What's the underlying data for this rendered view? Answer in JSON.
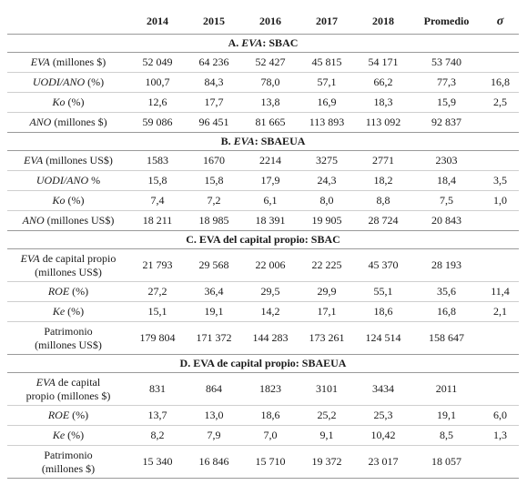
{
  "header": {
    "blank": "",
    "years": [
      "2014",
      "2015",
      "2016",
      "2017",
      "2018"
    ],
    "promedio": "Promedio",
    "sigma": "σ"
  },
  "sections": [
    {
      "title_prefix": "A. ",
      "title_italic": "EVA",
      "title_suffix": ": SBAC",
      "rows": [
        {
          "label_italic": "EVA",
          "label_rest": " (millones $)",
          "values": [
            "52 049",
            "64 236",
            "52 427",
            "45 815",
            "54 171"
          ],
          "promedio": "53 740",
          "sigma": ""
        },
        {
          "label_italic": "UODI/ANO",
          "label_rest": " (%)",
          "values": [
            "100,7",
            "84,3",
            "78,0",
            "57,1",
            "66,2"
          ],
          "promedio": "77,3",
          "sigma": "16,8"
        },
        {
          "label_italic": "Ko",
          "label_rest": " (%)",
          "values": [
            "12,6",
            "17,7",
            "13,8",
            "16,9",
            "18,3"
          ],
          "promedio": "15,9",
          "sigma": "2,5"
        },
        {
          "label_italic": "ANO",
          "label_rest": " (millones $)",
          "values": [
            "59 086",
            "96 451",
            "81 665",
            "113 893",
            "113 092"
          ],
          "promedio": "92 837",
          "sigma": ""
        }
      ]
    },
    {
      "title_prefix": "B. ",
      "title_italic": "EVA",
      "title_suffix": ": SBAEUA",
      "rows": [
        {
          "label_italic": "EVA",
          "label_rest": " (millones US$)",
          "values": [
            "1583",
            "1670",
            "2214",
            "3275",
            "2771"
          ],
          "promedio": "2303",
          "sigma": ""
        },
        {
          "label_italic": "UODI/ANO",
          "label_rest": " %",
          "values": [
            "15,8",
            "15,8",
            "17,9",
            "24,3",
            "18,2"
          ],
          "promedio": "18,4",
          "sigma": "3,5"
        },
        {
          "label_italic": "Ko",
          "label_rest": " (%)",
          "values": [
            "7,4",
            "7,2",
            "6,1",
            "8,0",
            "8,8"
          ],
          "promedio": "7,5",
          "sigma": "1,0"
        },
        {
          "label_italic": "ANO",
          "label_rest": " (millones US$)",
          "values": [
            "18 211",
            "18 985",
            "18 391",
            "19 905",
            "28 724"
          ],
          "promedio": "20 843",
          "sigma": ""
        }
      ]
    },
    {
      "title_prefix": "C. EVA del capital propio: SBAC",
      "title_italic": "",
      "title_suffix": "",
      "rows": [
        {
          "label_italic": "EVA",
          "label_rest": " de capital propio",
          "label_line2": "(millones US$)",
          "tall": true,
          "values": [
            "21 793",
            "29 568",
            "22 006",
            "22 225",
            "45 370"
          ],
          "promedio": "28 193",
          "sigma": ""
        },
        {
          "label_italic": "ROE",
          "label_rest": " (%)",
          "values": [
            "27,2",
            "36,4",
            "29,5",
            "29,9",
            "55,1"
          ],
          "promedio": "35,6",
          "sigma": "11,4"
        },
        {
          "label_italic": "Ke",
          "label_rest": " (%)",
          "values": [
            "15,1",
            "19,1",
            "14,2",
            "17,1",
            "18,6"
          ],
          "promedio": "16,8",
          "sigma": "2,1"
        },
        {
          "label_italic": "",
          "label_rest": "Patrimonio",
          "label_line2": "(millones US$)",
          "tall": true,
          "values": [
            "179 804",
            "171 372",
            "144 283",
            "173 261",
            "124 514"
          ],
          "promedio": "158 647",
          "sigma": ""
        }
      ]
    },
    {
      "title_prefix": "D. EVA de capital propio: SBAEUA",
      "title_italic": "",
      "title_suffix": "",
      "rows": [
        {
          "label_italic": "EVA",
          "label_rest": " de capital",
          "label_line2": "propio (millones $)",
          "tall": true,
          "values": [
            "831",
            "864",
            "1823",
            "3101",
            "3434"
          ],
          "promedio": "2011",
          "sigma": ""
        },
        {
          "label_italic": "ROE",
          "label_rest": " (%)",
          "values": [
            "13,7",
            "13,0",
            "18,6",
            "25,2",
            "25,3"
          ],
          "promedio": "19,1",
          "sigma": "6,0"
        },
        {
          "label_italic": "Ke",
          "label_rest": " (%)",
          "values": [
            "8,2",
            "7,9",
            "7,0",
            "9,1",
            "10,42"
          ],
          "promedio": "8,5",
          "sigma": "1,3"
        },
        {
          "label_italic": "",
          "label_rest": "Patrimonio",
          "label_line2": "(millones $)",
          "tall": true,
          "values": [
            "15 340",
            "16 846",
            "15 710",
            "19 372",
            "23 017"
          ],
          "promedio": "18 057",
          "sigma": ""
        }
      ]
    }
  ]
}
